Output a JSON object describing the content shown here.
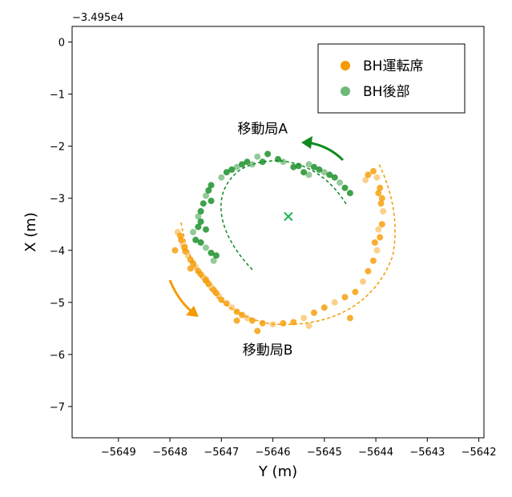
{
  "chart_data": {
    "type": "scatter",
    "xlabel": "Y (m)",
    "ylabel": "X (m)",
    "offset_label": "−3.495e4",
    "xlim": [
      -5649.9,
      -5641.9
    ],
    "ylim": [
      -7.6,
      0.3
    ],
    "y_inverted": true,
    "x_ticks": [
      -5649,
      -5648,
      -5647,
      -5646,
      -5645,
      -5644,
      -5643,
      -5642
    ],
    "x_tick_labels": [
      "−5649",
      "−5648",
      "−5647",
      "−5646",
      "−5645",
      "−5644",
      "−5643",
      "−5642"
    ],
    "y_ticks": [
      0,
      -1,
      -2,
      -3,
      -4,
      -5,
      -6,
      -7
    ],
    "y_tick_labels": [
      "0",
      "−1",
      "−2",
      "−3",
      "−4",
      "−5",
      "−6",
      "−7"
    ],
    "grid": false,
    "legend_position": "top-right",
    "colors": {
      "orange": "#f59a00",
      "green": "#0f8a1e",
      "center": "#1fb55a"
    },
    "series": [
      {
        "name": "BH運転席",
        "color": "#f59a00",
        "points": [
          [
            -5647.85,
            -3.65
          ],
          [
            -5647.8,
            -3.72
          ],
          [
            -5647.78,
            -3.8
          ],
          [
            -5647.75,
            -3.88
          ],
          [
            -5647.72,
            -3.95
          ],
          [
            -5647.7,
            -4.02
          ],
          [
            -5647.65,
            -4.1
          ],
          [
            -5647.6,
            -4.18
          ],
          [
            -5647.55,
            -4.25
          ],
          [
            -5647.5,
            -4.32
          ],
          [
            -5647.45,
            -4.4
          ],
          [
            -5647.4,
            -4.46
          ],
          [
            -5647.35,
            -4.52
          ],
          [
            -5647.3,
            -4.58
          ],
          [
            -5647.25,
            -4.64
          ],
          [
            -5647.2,
            -4.7
          ],
          [
            -5647.15,
            -4.76
          ],
          [
            -5647.1,
            -4.82
          ],
          [
            -5647.05,
            -4.88
          ],
          [
            -5647.0,
            -4.95
          ],
          [
            -5646.9,
            -5.02
          ],
          [
            -5646.8,
            -5.1
          ],
          [
            -5646.7,
            -5.18
          ],
          [
            -5646.6,
            -5.24
          ],
          [
            -5646.5,
            -5.3
          ],
          [
            -5646.4,
            -5.35
          ],
          [
            -5646.2,
            -5.4
          ],
          [
            -5646.0,
            -5.42
          ],
          [
            -5645.8,
            -5.4
          ],
          [
            -5645.6,
            -5.38
          ],
          [
            -5645.4,
            -5.3
          ],
          [
            -5645.2,
            -5.2
          ],
          [
            -5645.0,
            -5.1
          ],
          [
            -5644.8,
            -5.0
          ],
          [
            -5644.6,
            -4.9
          ],
          [
            -5644.4,
            -4.8
          ],
          [
            -5644.25,
            -4.6
          ],
          [
            -5644.15,
            -4.4
          ],
          [
            -5644.05,
            -4.2
          ],
          [
            -5643.98,
            -4.0
          ],
          [
            -5643.92,
            -3.75
          ],
          [
            -5643.88,
            -3.5
          ],
          [
            -5643.86,
            -3.25
          ],
          [
            -5643.88,
            -3.0
          ],
          [
            -5643.92,
            -2.8
          ],
          [
            -5643.98,
            -2.6
          ],
          [
            -5644.05,
            -2.48
          ],
          [
            -5644.15,
            -2.55
          ],
          [
            -5644.2,
            -2.65
          ],
          [
            -5643.95,
            -2.9
          ],
          [
            -5643.9,
            -3.1
          ],
          [
            -5643.95,
            -3.6
          ],
          [
            -5644.02,
            -3.85
          ],
          [
            -5644.5,
            -5.3
          ],
          [
            -5645.3,
            -5.45
          ],
          [
            -5646.3,
            -5.55
          ],
          [
            -5646.7,
            -5.35
          ],
          [
            -5647.3,
            -4.55
          ],
          [
            -5647.6,
            -4.35
          ],
          [
            -5647.9,
            -4.0
          ]
        ]
      },
      {
        "name": "BH後部",
        "color": "#0f8a1e",
        "points": [
          [
            -5647.15,
            -4.2
          ],
          [
            -5647.1,
            -4.1
          ],
          [
            -5647.2,
            -4.05
          ],
          [
            -5647.3,
            -3.95
          ],
          [
            -5647.4,
            -3.85
          ],
          [
            -5647.5,
            -3.8
          ],
          [
            -5647.55,
            -3.65
          ],
          [
            -5647.45,
            -3.55
          ],
          [
            -5647.4,
            -3.45
          ],
          [
            -5647.45,
            -3.35
          ],
          [
            -5647.4,
            -3.25
          ],
          [
            -5647.35,
            -3.1
          ],
          [
            -5647.3,
            -2.95
          ],
          [
            -5647.25,
            -2.85
          ],
          [
            -5647.2,
            -2.75
          ],
          [
            -5647.0,
            -2.6
          ],
          [
            -5646.9,
            -2.5
          ],
          [
            -5646.8,
            -2.45
          ],
          [
            -5646.7,
            -2.4
          ],
          [
            -5646.6,
            -2.35
          ],
          [
            -5646.5,
            -2.3
          ],
          [
            -5646.3,
            -2.2
          ],
          [
            -5646.1,
            -2.15
          ],
          [
            -5645.9,
            -2.25
          ],
          [
            -5645.8,
            -2.3
          ],
          [
            -5645.6,
            -2.4
          ],
          [
            -5645.5,
            -2.38
          ],
          [
            -5645.3,
            -2.35
          ],
          [
            -5645.2,
            -2.4
          ],
          [
            -5645.1,
            -2.45
          ],
          [
            -5645.0,
            -2.5
          ],
          [
            -5644.9,
            -2.55
          ],
          [
            -5644.8,
            -2.6
          ],
          [
            -5644.7,
            -2.7
          ],
          [
            -5644.6,
            -2.8
          ],
          [
            -5644.5,
            -2.9
          ],
          [
            -5645.3,
            -2.55
          ],
          [
            -5645.4,
            -2.5
          ],
          [
            -5646.2,
            -2.3
          ],
          [
            -5646.4,
            -2.35
          ],
          [
            -5647.2,
            -3.05
          ],
          [
            -5647.3,
            -3.6
          ]
        ]
      }
    ],
    "center_marker": {
      "x": -5645.7,
      "y": -3.35,
      "symbol": "x"
    },
    "annotations": [
      {
        "text": "移動局A",
        "x": -5646.2,
        "y": -1.75
      },
      {
        "text": "移動局B",
        "x": -5646.1,
        "y": -6.0
      }
    ]
  }
}
